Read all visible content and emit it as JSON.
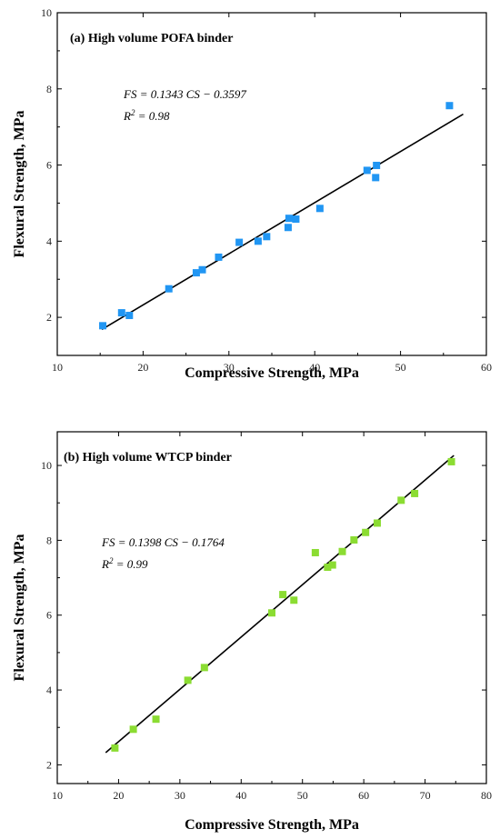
{
  "chart_data": [
    {
      "type": "scatter",
      "panel_title": "(a) High volume POFA binder",
      "xlabel": "Compressive Strength, MPa",
      "ylabel": "Flexural Strength, MPa",
      "xlim": [
        10,
        60
      ],
      "ylim": [
        1,
        10
      ],
      "xticks": [
        "10",
        "20",
        "30",
        "40",
        "50",
        "60"
      ],
      "yticks": [
        "2",
        "4",
        "6",
        "8",
        "10"
      ],
      "xtick_values": [
        10,
        20,
        30,
        40,
        50,
        60
      ],
      "ytick_values": [
        2,
        4,
        6,
        8,
        10
      ],
      "equation": "FS = 0.1343 CS − 0.3597",
      "r2_prefix": "R",
      "r2_sup": "2",
      "r2_suffix": " = 0.98",
      "marker_color": "#2196f3",
      "line_color": "#000000",
      "fit": {
        "slope": 0.1343,
        "intercept": -0.3597,
        "x_range": [
          15.2,
          57.3
        ]
      },
      "points": [
        [
          15.3,
          1.78
        ],
        [
          17.5,
          2.12
        ],
        [
          18.4,
          2.05
        ],
        [
          23.0,
          2.75
        ],
        [
          26.2,
          3.17
        ],
        [
          26.9,
          3.25
        ],
        [
          28.8,
          3.58
        ],
        [
          31.2,
          3.97
        ],
        [
          33.4,
          4.0
        ],
        [
          34.4,
          4.12
        ],
        [
          36.9,
          4.36
        ],
        [
          37.0,
          4.6
        ],
        [
          37.8,
          4.58
        ],
        [
          40.6,
          4.86
        ],
        [
          46.1,
          5.86
        ],
        [
          47.1,
          5.67
        ],
        [
          47.2,
          5.99
        ],
        [
          55.7,
          7.56
        ]
      ]
    },
    {
      "type": "scatter",
      "panel_title": "(b) High volume WTCP binder",
      "xlabel": "Compressive Strength, MPa",
      "ylabel": "Flexural Strength, MPa",
      "xlim": [
        10,
        80
      ],
      "ylim": [
        1.5,
        10.9
      ],
      "xticks": [
        "10",
        "20",
        "30",
        "40",
        "50",
        "60",
        "70",
        "80"
      ],
      "yticks": [
        "2",
        "4",
        "6",
        "8",
        "10"
      ],
      "xtick_values": [
        10,
        20,
        30,
        40,
        50,
        60,
        70,
        80
      ],
      "ytick_values": [
        2,
        4,
        6,
        8,
        10
      ],
      "equation": "FS = 0.1398 CS − 0.1764",
      "r2_prefix": "R",
      "r2_sup": "2",
      "r2_suffix": " = 0.99",
      "marker_color": "#8bdc32",
      "line_color": "#000000",
      "fit": {
        "slope": 0.1398,
        "intercept": -0.1764,
        "x_range": [
          17.9,
          74.7
        ]
      },
      "points": [
        [
          19.4,
          2.45
        ],
        [
          22.4,
          2.95
        ],
        [
          26.1,
          3.22
        ],
        [
          31.3,
          4.26
        ],
        [
          34.0,
          4.6
        ],
        [
          45.0,
          6.06
        ],
        [
          46.8,
          6.55
        ],
        [
          48.6,
          6.4
        ],
        [
          52.1,
          7.67
        ],
        [
          54.1,
          7.28
        ],
        [
          54.9,
          7.34
        ],
        [
          56.5,
          7.7
        ],
        [
          58.4,
          8.01
        ],
        [
          60.3,
          8.21
        ],
        [
          62.2,
          8.46
        ],
        [
          66.1,
          9.07
        ],
        [
          68.3,
          9.25
        ],
        [
          74.3,
          10.1
        ]
      ]
    }
  ]
}
